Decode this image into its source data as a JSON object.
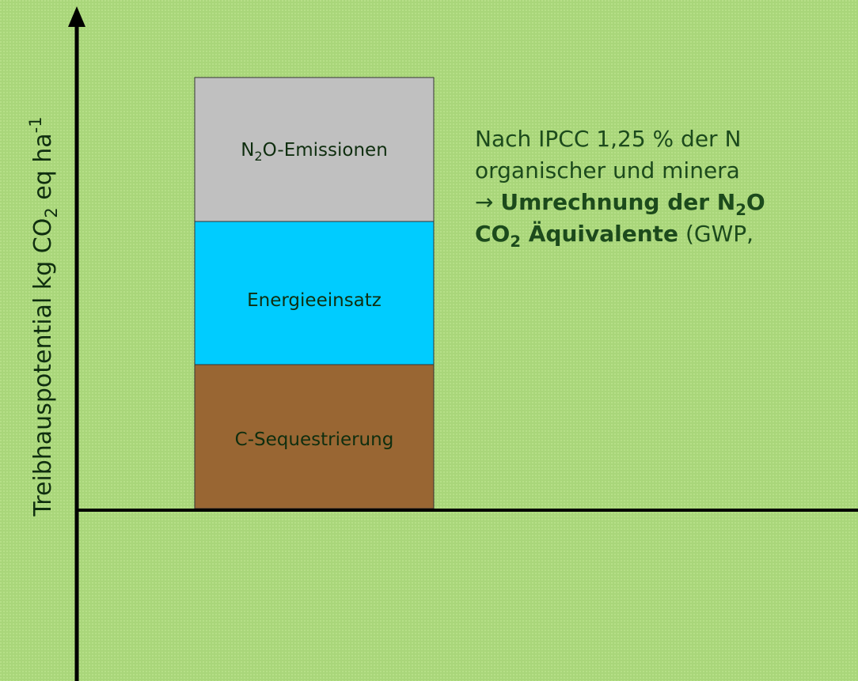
{
  "y_axis_label": {
    "main": "Treibhauspotential kg CO",
    "sub": "2",
    "rest": " eq ha",
    "sup": "-1"
  },
  "blocks": [
    {
      "label": {
        "a": "N",
        "sub": "2",
        "b": "O-Emissionen"
      }
    },
    {
      "label": {
        "a": "Energieeinsatz"
      }
    },
    {
      "label": {
        "a": "C-Sequestrierung"
      }
    }
  ],
  "note": {
    "line1": "Nach IPCC 1,25 % der N",
    "line2": "organischer und minera",
    "line3": {
      "arrow": "→ ",
      "a": "Umrechnung der N",
      "sub": "2",
      "b": "O"
    },
    "line4": {
      "a": "CO",
      "sub": "2",
      "b": " Äquivalente",
      "c": " (GWP, "
    }
  }
}
